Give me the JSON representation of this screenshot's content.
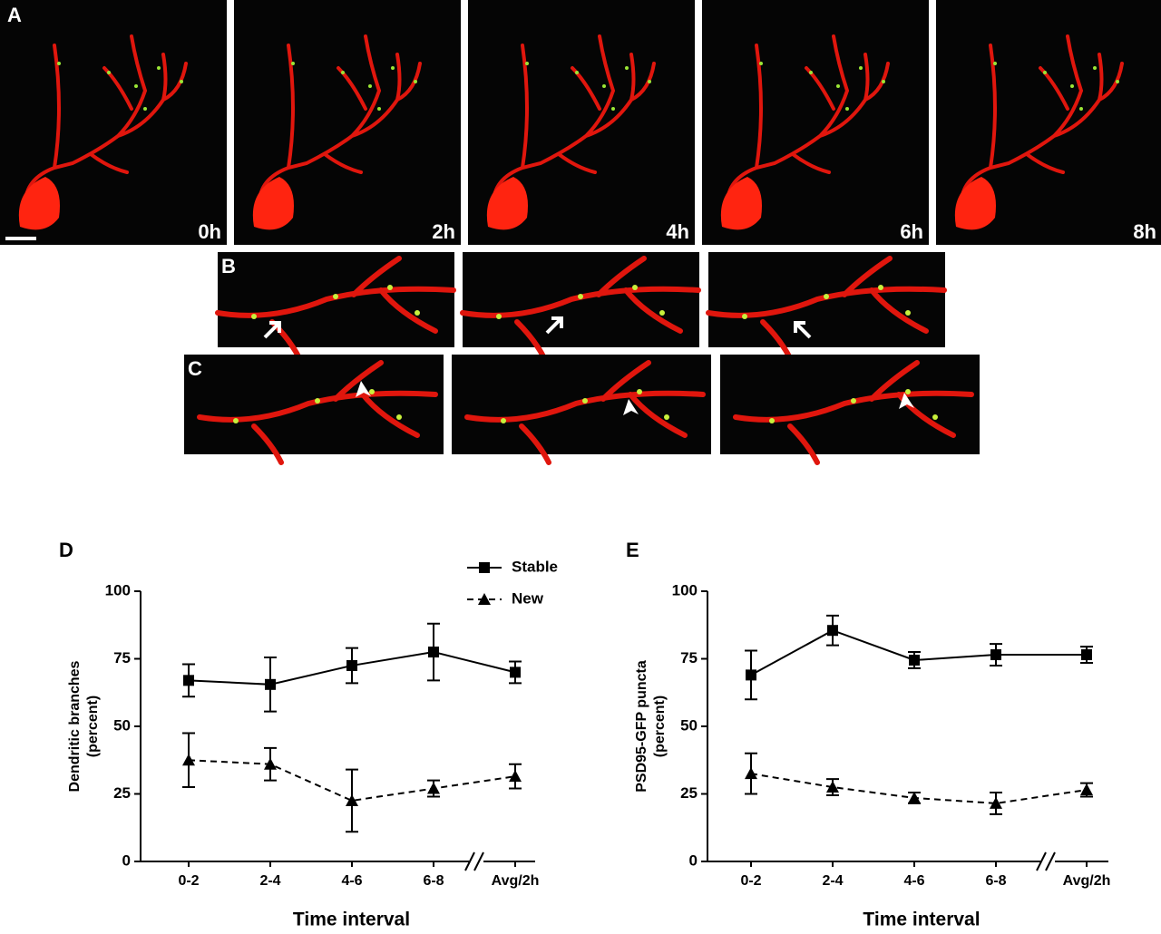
{
  "image_panels": [
    {
      "label": "A",
      "frames": [
        "0h",
        "2h",
        "4h",
        "6h",
        "8h"
      ]
    },
    {
      "label": "B"
    },
    {
      "label": "C"
    }
  ],
  "chart_data": [
    {
      "type": "line",
      "panel_label": "D",
      "ylabel": [
        "Dendritic branches",
        "(percent)"
      ],
      "xlabel": "Time interval",
      "categories": [
        "0-2",
        "2-4",
        "4-6",
        "6-8",
        "Avg/2h"
      ],
      "ylim": [
        0,
        100
      ],
      "yticks": [
        0,
        25,
        50,
        75,
        100
      ],
      "series": [
        {
          "name": "Stable",
          "color": "#000000",
          "marker": "square",
          "dash": false,
          "values": [
            67,
            65.5,
            72.5,
            77.5,
            70
          ],
          "errors": [
            6,
            10,
            6.5,
            10.5,
            4
          ]
        },
        {
          "name": "New",
          "color": "#000000",
          "marker": "triangle",
          "dash": true,
          "values": [
            37.5,
            36,
            22.5,
            27,
            31.5
          ],
          "errors": [
            10,
            6,
            11.5,
            3,
            4.5
          ]
        }
      ]
    },
    {
      "type": "line",
      "panel_label": "E",
      "ylabel": [
        "PSD95-GFP puncta",
        "(percent)"
      ],
      "xlabel": "Time interval",
      "categories": [
        "0-2",
        "2-4",
        "4-6",
        "6-8",
        "Avg/2h"
      ],
      "ylim": [
        0,
        100
      ],
      "yticks": [
        0,
        25,
        50,
        75,
        100
      ],
      "series": [
        {
          "color": "#000000",
          "marker": "square",
          "dash": false,
          "values": [
            69,
            85.5,
            74.5,
            76.5,
            76.5
          ],
          "errors": [
            9,
            5.5,
            3,
            4,
            3
          ]
        },
        {
          "color": "#000000",
          "marker": "triangle",
          "dash": true,
          "values": [
            32.5,
            27.5,
            23.5,
            21.5,
            26.5
          ],
          "errors": [
            7.5,
            3,
            2,
            4,
            2.5
          ]
        }
      ]
    }
  ]
}
